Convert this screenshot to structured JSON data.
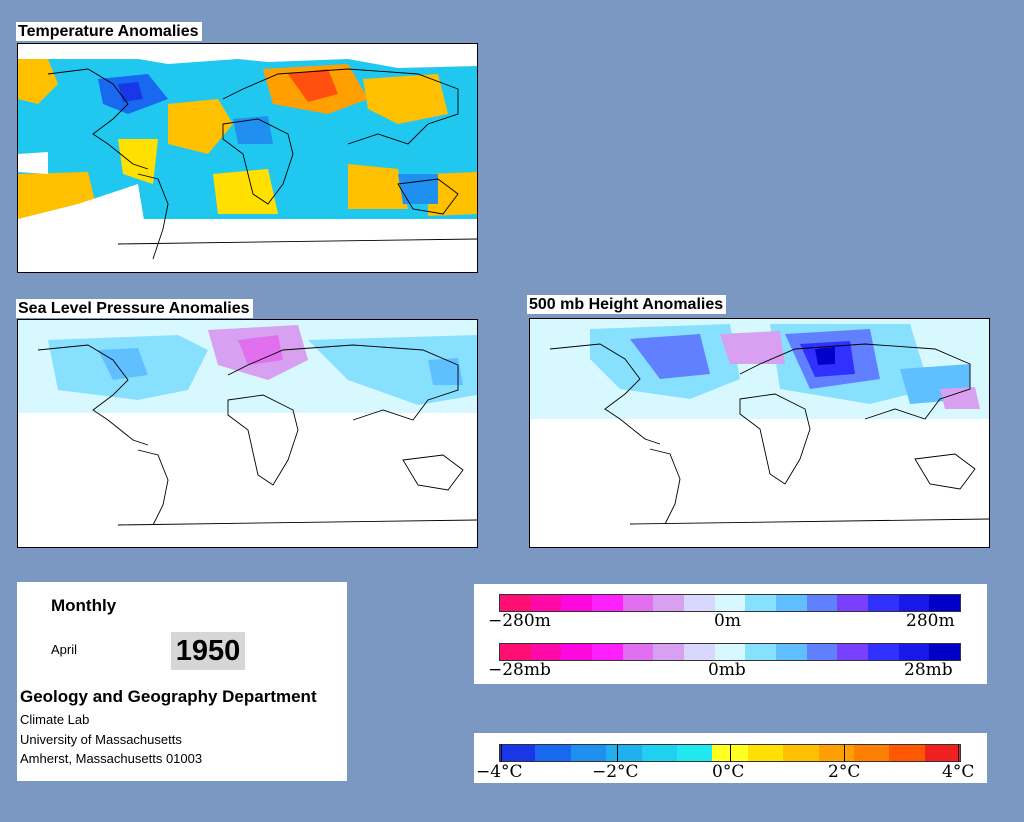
{
  "panels": {
    "temperature": {
      "title": "Temperature Anomalies"
    },
    "pressure": {
      "title": "Sea Level Pressure Anomalies"
    },
    "height": {
      "title": "500 mb Height Anomalies"
    }
  },
  "info": {
    "frequency": "Monthly",
    "month": "April",
    "year": "1950",
    "department": "Geology and Geography Department",
    "lab": "Climate Lab",
    "university": "University of Massachusetts",
    "address": "Amherst, Massachusetts 01003"
  },
  "legend_height": {
    "labels": {
      "min": "−280m",
      "mid": "0m",
      "max": "280m"
    },
    "colors": [
      "#ff0f74",
      "#ff0aa8",
      "#ff08e0",
      "#ff20ff",
      "#e070f0",
      "#d8a0f0",
      "#d8d8ff",
      "#d8f8ff",
      "#88e0ff",
      "#60c0ff",
      "#6080ff",
      "#7a40ff",
      "#3030ff",
      "#1818e8",
      "#0000c8"
    ]
  },
  "legend_pressure": {
    "labels": {
      "min": "−28mb",
      "mid": "0mb",
      "max": "28mb"
    },
    "colors": [
      "#ff0f74",
      "#ff0aa8",
      "#ff08e0",
      "#ff20ff",
      "#e070f0",
      "#d8a0f0",
      "#d8d8ff",
      "#d8f8ff",
      "#88e0ff",
      "#60c0ff",
      "#6080ff",
      "#7a40ff",
      "#3030ff",
      "#1818e8",
      "#0000c8"
    ]
  },
  "legend_temperature": {
    "labels": {
      "l1": "−4°C",
      "l2": "−2°C",
      "l3": "0°C",
      "l4": "2°C",
      "l5": "4°C"
    },
    "colors": [
      "#1838e8",
      "#1868f0",
      "#2090f0",
      "#20b0f0",
      "#20d0f0",
      "#20e8f0",
      "#ffff20",
      "#ffe000",
      "#ffc000",
      "#ffa000",
      "#ff8000",
      "#ff5800",
      "#f02020"
    ]
  }
}
